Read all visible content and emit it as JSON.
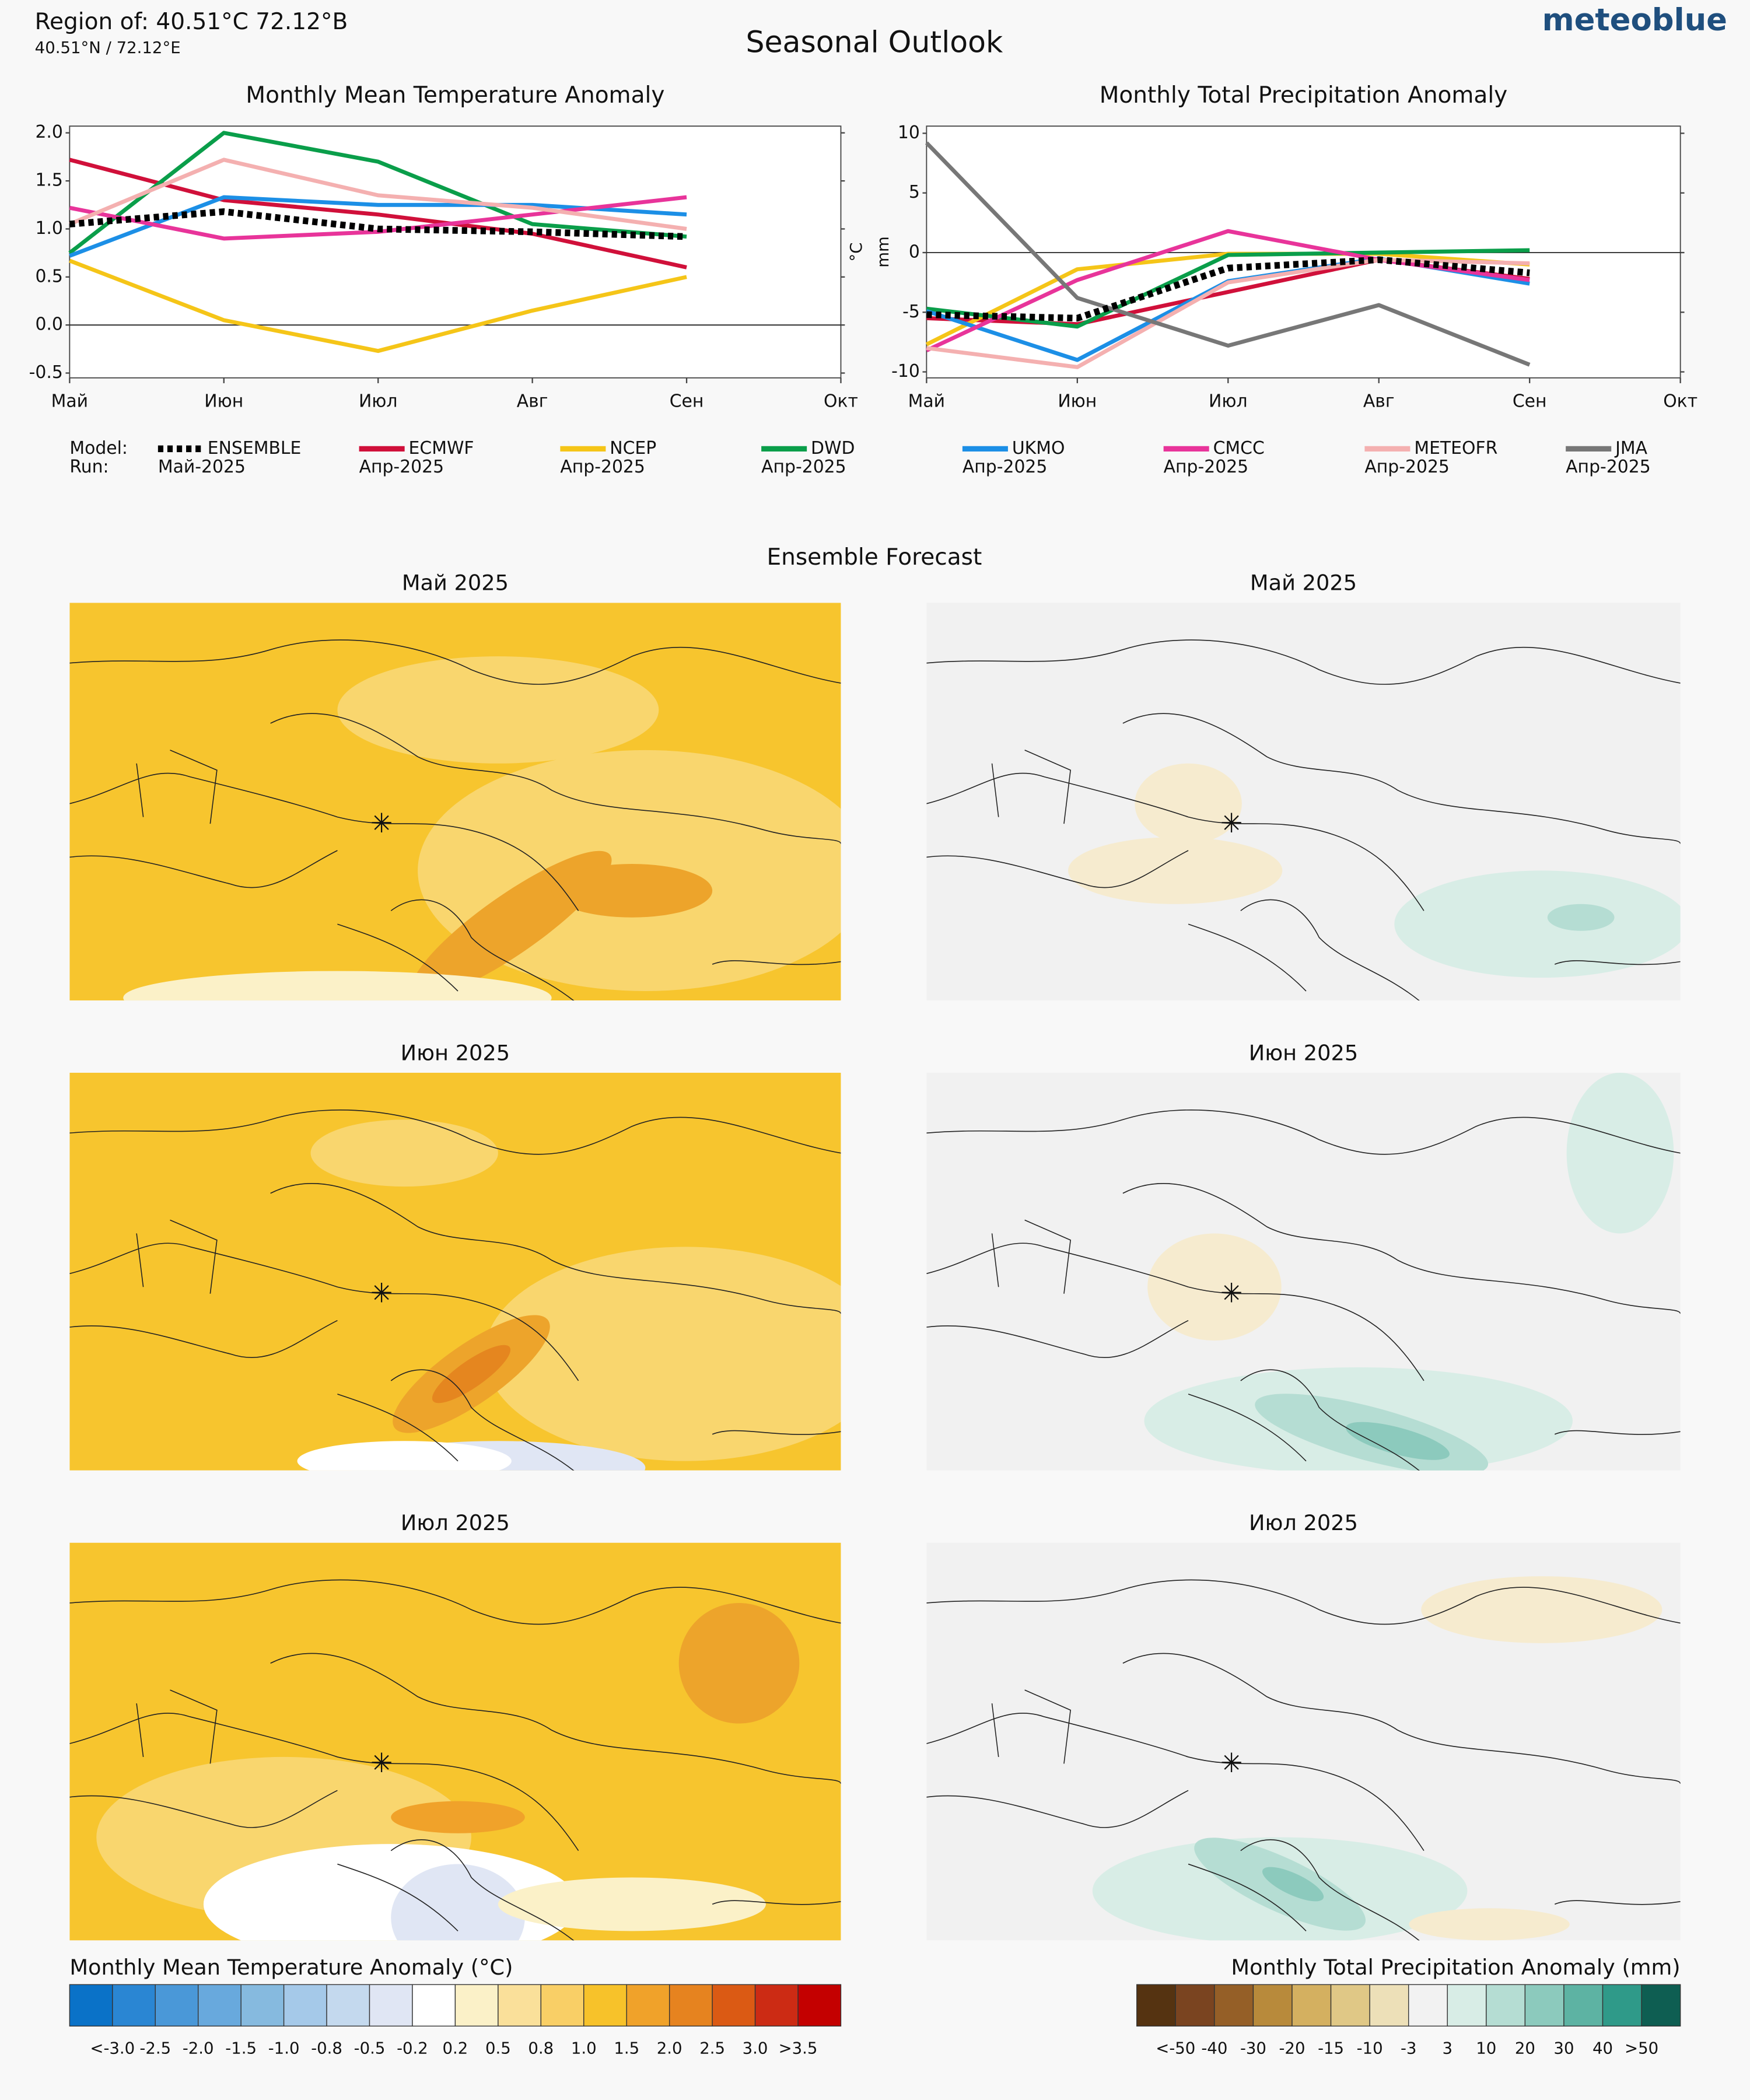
{
  "header": {
    "title": "Region of: 40.51°C 72.12°В",
    "subtitle": "40.51°N / 72.12°E",
    "heading": "Seasonal Outlook",
    "brand": "meteoblue"
  },
  "chart_data": [
    {
      "type": "line",
      "title": "Monthly Mean Temperature Anomaly",
      "y_label": "°C",
      "categories": [
        "Май",
        "Июн",
        "Июл",
        "Авг",
        "Сен",
        "Окт"
      ],
      "ylim": [
        -0.55,
        2.07
      ],
      "yticks": [
        {
          "value": -0.5,
          "label": "-0.5"
        },
        {
          "value": 0,
          "label": "0.0"
        },
        0.5,
        {
          "value": 1,
          "label": "1.0"
        },
        1.5,
        {
          "value": 2,
          "label": "2.0"
        }
      ],
      "series": [
        {
          "values": [
            1.05,
            1.18,
            1.0,
            0.97,
            0.92,
            null
          ]
        },
        {
          "values": [
            1.72,
            1.3,
            1.15,
            0.95,
            0.6,
            null
          ]
        },
        {
          "values": [
            0.67,
            0.05,
            -0.27,
            0.15,
            0.5,
            null
          ]
        },
        {
          "values": [
            0.75,
            2.0,
            1.7,
            1.05,
            0.92,
            null
          ]
        },
        {
          "values": [
            0.72,
            1.33,
            1.25,
            1.25,
            1.15,
            null
          ]
        },
        {
          "values": [
            1.22,
            0.9,
            0.97,
            1.15,
            1.33,
            null
          ]
        },
        {
          "values": [
            1.05,
            1.72,
            1.35,
            1.22,
            1.0,
            null
          ]
        },
        {
          "values": [
            null,
            null,
            null,
            null,
            null,
            null
          ]
        }
      ]
    },
    {
      "type": "line",
      "title": "Monthly Total Precipitation Anomaly",
      "y_label": "mm",
      "categories": [
        "Май",
        "Июн",
        "Июл",
        "Авг",
        "Сен",
        "Окт"
      ],
      "ylim": [
        -10.5,
        10.6
      ],
      "yticks": [
        -10,
        -5,
        0,
        5,
        10
      ],
      "series": [
        {
          "values": [
            -5.2,
            -5.5,
            -1.3,
            -0.6,
            -1.7,
            null
          ]
        },
        {
          "values": [
            -5.5,
            -6.0,
            -3.3,
            -0.6,
            -2.2,
            null
          ]
        },
        {
          "values": [
            -7.7,
            -1.4,
            -0.1,
            -0.1,
            -1.0,
            null
          ]
        },
        {
          "values": [
            -4.7,
            -6.2,
            -0.2,
            0.0,
            0.2,
            null
          ]
        },
        {
          "values": [
            -4.9,
            -9.0,
            -2.4,
            -0.5,
            -2.6,
            null
          ]
        },
        {
          "values": [
            -8.2,
            -2.3,
            1.8,
            -0.6,
            -2.3,
            null
          ]
        },
        {
          "values": [
            -8.0,
            -9.6,
            -2.5,
            -0.6,
            -0.9,
            null
          ]
        },
        {
          "values": [
            9.2,
            -3.8,
            -7.8,
            -4.4,
            -9.4,
            null
          ]
        }
      ]
    }
  ],
  "legend": {
    "model_label": "Model:",
    "run_label": "Run:",
    "entries": [
      {
        "name": "ENSEMBLE",
        "color": "#000000",
        "run": "Май-2025",
        "style": "dotted"
      },
      {
        "name": "ECMWF",
        "color": "#d0103a",
        "run": "Апр-2025"
      },
      {
        "name": "NCEP",
        "color": "#f5c518",
        "run": "Апр-2025"
      },
      {
        "name": "DWD",
        "color": "#0a9e4a",
        "run": "Апр-2025"
      },
      {
        "name": "UKMO",
        "color": "#1c8fe6",
        "run": "Апр-2025"
      },
      {
        "name": "CMCC",
        "color": "#e8349a",
        "run": "Апр-2025"
      },
      {
        "name": "METEOFR",
        "color": "#f4b0b0",
        "run": "Апр-2025"
      },
      {
        "name": "JMA",
        "color": "#777777",
        "run": "Апр-2025"
      }
    ]
  },
  "forecast": {
    "title": "Ensemble Forecast",
    "temperature_maps": [
      "Май 2025",
      "Июн 2025",
      "Июл 2025"
    ],
    "precipitation_maps": [
      "Май 2025",
      "Июн 2025",
      "Июл 2025"
    ]
  },
  "temperature_scale": {
    "title": "Monthly Mean Temperature Anomaly (°C)",
    "colors": [
      "#0a72c8",
      "#2a86d3",
      "#4a98d8",
      "#68a9dd",
      "#86badf",
      "#a5c9e9",
      "#c4d9ee",
      "#e0e6f4",
      "#ffffff",
      "#fbf1c8",
      "#fae09a",
      "#f9cf66",
      "#f7c22a",
      "#f0a22a",
      "#e6831f",
      "#db5a14",
      "#cc2b14",
      "#c40000"
    ],
    "labels": [
      "<-3.0",
      "-2.5",
      "-2.0",
      "-1.5",
      "-1.0",
      "-0.8",
      "-0.5",
      "-0.2",
      "0.2",
      "0.5",
      "0.8",
      "1.0",
      "1.5",
      "2.0",
      "2.5",
      "3.0",
      ">3.5"
    ]
  },
  "precipitation_scale": {
    "title": "Monthly Total Precipitation Anomaly (mm)",
    "colors": [
      "#553311",
      "#7a4420",
      "#955f27",
      "#b88a3b",
      "#d4b060",
      "#e0c886",
      "#ede0b8",
      "#f2f2f2",
      "#d8ede6",
      "#b5ddd3",
      "#8ccabd",
      "#5db3a3",
      "#2f9a89",
      "#0e5e52"
    ],
    "labels": [
      "<-50",
      "-40",
      "-30",
      "-20",
      "-15",
      "-10",
      "-3",
      "3",
      "10",
      "20",
      "30",
      "40",
      ">50"
    ]
  }
}
